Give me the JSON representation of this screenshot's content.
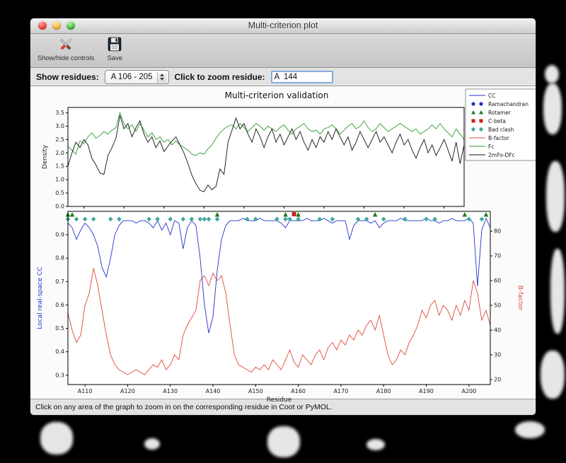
{
  "window": {
    "title": "Multi-criterion plot"
  },
  "toolbar": {
    "buttons": [
      {
        "label": "Show/hide controls"
      },
      {
        "label": "Save"
      }
    ]
  },
  "controls": {
    "show_residues_label": "Show residues:",
    "residue_range_value": "A 106 - 205",
    "zoom_label": "Click to zoom residue:",
    "zoom_value": "A  144"
  },
  "status": {
    "message": "Click on any area of the graph to zoom in on the corresponding residue in Coot or PyMOL."
  },
  "chart_data": {
    "type": "line",
    "title": "Multi-criterion validation",
    "xlabel": "Residue",
    "x_start": 106,
    "x_end": 205,
    "legend_position": "top-right",
    "x_ticks": [
      {
        "v": 110,
        "label": "A110"
      },
      {
        "v": 120,
        "label": "A120"
      },
      {
        "v": 130,
        "label": "A130"
      },
      {
        "v": 140,
        "label": "A140"
      },
      {
        "v": 150,
        "label": "A150"
      },
      {
        "v": 160,
        "label": "A160"
      },
      {
        "v": 170,
        "label": "A170"
      },
      {
        "v": 180,
        "label": "A180"
      },
      {
        "v": 190,
        "label": "A190"
      },
      {
        "v": 200,
        "label": "A200"
      }
    ],
    "colors": {
      "cc": "#2233cc",
      "bfactor": "#e0483a",
      "fc": "#2e9b2e",
      "two_fo_dfc": "#111111",
      "ramachandran": "#2233cc",
      "rotamer": "#1e7d1e",
      "cbeta": "#cc2222",
      "bad_clash": "#3fa89e"
    },
    "top_plot": {
      "ylabel": "Density",
      "ylim": [
        0.0,
        3.7
      ],
      "yticks": [
        0.0,
        0.5,
        1.0,
        1.5,
        2.0,
        2.5,
        3.0,
        3.5
      ],
      "series": [
        {
          "name": "Fc",
          "color_key": "fc",
          "values": [
            2.25,
            2.1,
            1.95,
            2.45,
            2.35,
            2.6,
            2.75,
            2.55,
            2.65,
            2.8,
            2.7,
            2.85,
            2.95,
            3.5,
            3.1,
            2.9,
            3.05,
            2.8,
            3.1,
            2.85,
            2.6,
            2.75,
            2.5,
            2.6,
            2.4,
            2.5,
            2.3,
            2.45,
            2.3,
            2.2,
            2.1,
            1.95,
            1.9,
            2.0,
            1.95,
            2.15,
            2.3,
            2.55,
            2.75,
            2.9,
            3.0,
            3.05,
            2.9,
            3.1,
            2.95,
            2.8,
            2.95,
            3.1,
            3.0,
            2.85,
            3.0,
            2.9,
            2.8,
            2.95,
            3.05,
            2.85,
            2.7,
            2.9,
            3.0,
            3.1,
            2.9,
            2.8,
            2.85,
            2.7,
            2.9,
            2.95,
            3.05,
            2.9,
            2.7,
            2.85,
            3.0,
            3.1,
            2.9,
            3.0,
            3.2,
            2.95,
            2.8,
            2.9,
            3.1,
            2.95,
            2.8,
            2.9,
            3.0,
            3.1,
            3.0,
            2.9,
            2.8,
            2.9,
            2.7,
            2.8,
            2.9,
            3.05,
            2.9,
            3.1,
            2.9,
            2.75,
            2.6,
            2.9,
            2.7,
            2.5
          ]
        },
        {
          "name": "2mFo-DFc",
          "color_key": "two_fo_dfc",
          "values": [
            1.5,
            2.0,
            2.4,
            2.2,
            2.5,
            2.3,
            1.8,
            1.55,
            1.25,
            1.2,
            1.9,
            2.2,
            2.55,
            3.4,
            2.9,
            3.1,
            2.6,
            2.95,
            3.2,
            2.7,
            2.4,
            2.6,
            2.2,
            2.45,
            2.05,
            2.25,
            2.45,
            2.6,
            2.3,
            2.0,
            1.6,
            1.15,
            0.85,
            0.6,
            0.55,
            0.8,
            0.62,
            0.75,
            1.4,
            1.2,
            2.4,
            2.85,
            3.3,
            2.9,
            3.1,
            2.7,
            2.4,
            2.9,
            2.6,
            2.2,
            2.6,
            2.9,
            2.4,
            2.7,
            2.3,
            2.6,
            2.9,
            2.5,
            2.8,
            2.4,
            2.1,
            2.5,
            2.2,
            2.6,
            2.4,
            2.8,
            2.5,
            2.9,
            2.6,
            2.3,
            2.6,
            2.1,
            2.4,
            2.8,
            2.5,
            2.2,
            2.5,
            2.8,
            2.4,
            2.6,
            2.3,
            2.0,
            2.4,
            2.7,
            2.3,
            2.5,
            2.1,
            1.8,
            2.2,
            2.5,
            2.0,
            2.3,
            1.9,
            2.2,
            2.5,
            2.1,
            1.7,
            2.4,
            1.6,
            2.3
          ]
        }
      ]
    },
    "bottom_plot": {
      "ylabel_left": "Local real-space CC",
      "ylabel_right": "B-factor",
      "cc_ylim": [
        0.26,
        1.0
      ],
      "b_ylim": [
        18,
        88
      ],
      "cc_yticks": [
        0.3,
        0.4,
        0.5,
        0.6,
        0.7,
        0.8,
        0.9
      ],
      "b_yticks": [
        20,
        30,
        40,
        50,
        60,
        70,
        80
      ],
      "cc_values": [
        0.95,
        0.93,
        0.88,
        0.92,
        0.95,
        0.93,
        0.9,
        0.85,
        0.76,
        0.72,
        0.8,
        0.9,
        0.94,
        0.96,
        0.96,
        0.96,
        0.95,
        0.96,
        0.96,
        0.95,
        0.93,
        0.96,
        0.92,
        0.95,
        0.9,
        0.96,
        0.95,
        0.84,
        0.93,
        0.96,
        0.94,
        0.8,
        0.6,
        0.48,
        0.55,
        0.75,
        0.88,
        0.94,
        0.96,
        0.96,
        0.96,
        0.97,
        0.96,
        0.96,
        0.96,
        0.97,
        0.96,
        0.96,
        0.96,
        0.96,
        0.95,
        0.93,
        0.96,
        0.96,
        0.96,
        0.96,
        0.97,
        0.96,
        0.96,
        0.96,
        0.97,
        0.96,
        0.95,
        0.96,
        0.96,
        0.96,
        0.88,
        0.94,
        0.96,
        0.96,
        0.96,
        0.95,
        0.96,
        0.93,
        0.95,
        0.96,
        0.96,
        0.96,
        0.97,
        0.96,
        0.96,
        0.96,
        0.96,
        0.96,
        0.97,
        0.96,
        0.96,
        0.95,
        0.96,
        0.96,
        0.97,
        0.96,
        0.96,
        0.96,
        0.97,
        0.95,
        0.68,
        0.92,
        0.97,
        0.93
      ],
      "bfactor_values": [
        47,
        40,
        35,
        38,
        50,
        55,
        65,
        58,
        48,
        38,
        30,
        26,
        24,
        23,
        22,
        23,
        24,
        23,
        22,
        24,
        26,
        25,
        28,
        24,
        26,
        30,
        28,
        38,
        42,
        45,
        48,
        60,
        62,
        58,
        63,
        60,
        62,
        55,
        42,
        30,
        26,
        25,
        24,
        23,
        25,
        24,
        26,
        24,
        28,
        26,
        24,
        28,
        32,
        27,
        25,
        30,
        28,
        26,
        30,
        32,
        28,
        33,
        35,
        32,
        36,
        34,
        38,
        36,
        40,
        38,
        42,
        44,
        40,
        46,
        38,
        30,
        26,
        28,
        32,
        30,
        35,
        38,
        42,
        48,
        45,
        50,
        52,
        46,
        50,
        48,
        44,
        50,
        46,
        52,
        48,
        60,
        55,
        44,
        48,
        42
      ],
      "outlier_markers": {
        "ramachandran": [],
        "rotamer": [
          106,
          107,
          141,
          157,
          160,
          178,
          199,
          204
        ],
        "cbeta": [
          159
        ],
        "bad_clash": [
          106,
          108,
          110,
          112,
          116,
          118,
          125,
          127,
          130,
          133,
          135,
          137,
          138,
          139,
          141,
          148,
          150,
          155,
          157,
          158,
          160,
          165,
          168,
          174,
          176,
          180,
          185,
          190,
          192,
          200,
          203
        ]
      }
    },
    "legend": [
      {
        "label": "CC",
        "type": "line",
        "color_key": "cc"
      },
      {
        "label": "Ramachandran",
        "type": "circle",
        "color_key": "ramachandran"
      },
      {
        "label": "Rotamer",
        "type": "triangle",
        "color_key": "rotamer"
      },
      {
        "label": "C-beta",
        "type": "square",
        "color_key": "cbeta"
      },
      {
        "label": "Bad clash",
        "type": "diamond",
        "color_key": "bad_clash"
      },
      {
        "label": "B-factor",
        "type": "line",
        "color_key": "bfactor"
      },
      {
        "label": "Fc",
        "type": "line",
        "color_key": "fc"
      },
      {
        "label": "2mFo-DFc",
        "type": "line",
        "color_key": "two_fo_dfc"
      }
    ]
  }
}
